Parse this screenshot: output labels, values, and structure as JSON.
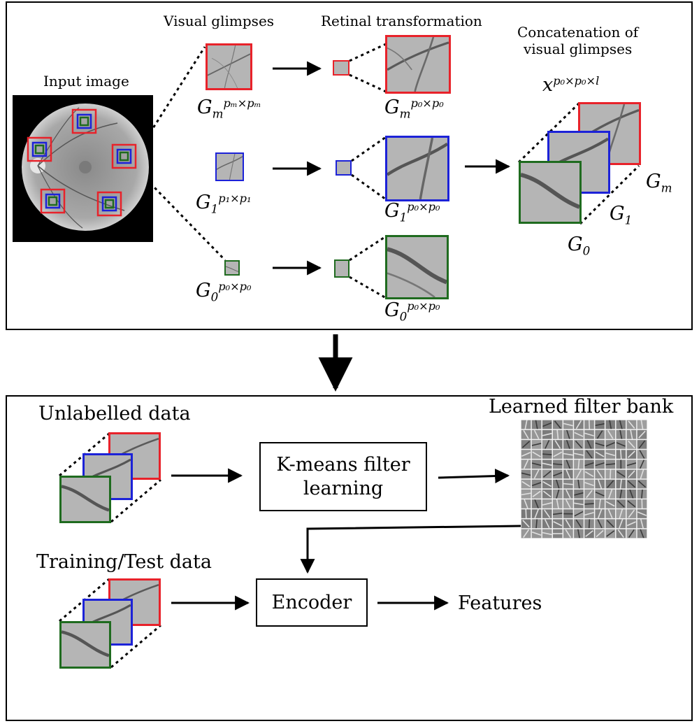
{
  "top_panel": {
    "input_label": "Input image",
    "visual_glimpses_label": "Visual glimpses",
    "retinal_label": "Retinal transformation",
    "concat_label_line1": "Concatenation of",
    "concat_label_line2": "visual glimpses",
    "concat_symbol": {
      "base": "x",
      "sup": "p₀×p₀×l"
    },
    "glimpses": [
      {
        "base": "G",
        "sub": "m",
        "sup": "pₘ×pₘ",
        "retinal_sub": "m",
        "retinal_sup": "p₀×p₀",
        "color": "#e8222a"
      },
      {
        "base": "G",
        "sub": "1",
        "sup": "p₁×p₁",
        "retinal_sub": "1",
        "retinal_sup": "p₀×p₀",
        "color": "#1c22d8"
      },
      {
        "base": "G",
        "sub": "0",
        "sup": "p₀×p₀",
        "retinal_sub": "0",
        "retinal_sup": "p₀×p₀",
        "color": "#1f6b1f"
      }
    ],
    "stack_labels": {
      "gm": "G",
      "gm_sub": "m",
      "g1": "G",
      "g1_sub": "1",
      "g0": "G",
      "g0_sub": "0"
    }
  },
  "bottom_panel": {
    "unlabelled_label": "Unlabelled data",
    "kmeans_label": "K-means filter learning",
    "filter_bank_label": "Learned filter bank",
    "training_label": "Training/Test data",
    "encoder_label": "Encoder",
    "features_label": "Features"
  },
  "colors": {
    "red": "#e8222a",
    "blue": "#1c22d8",
    "green": "#1f6b1f"
  }
}
